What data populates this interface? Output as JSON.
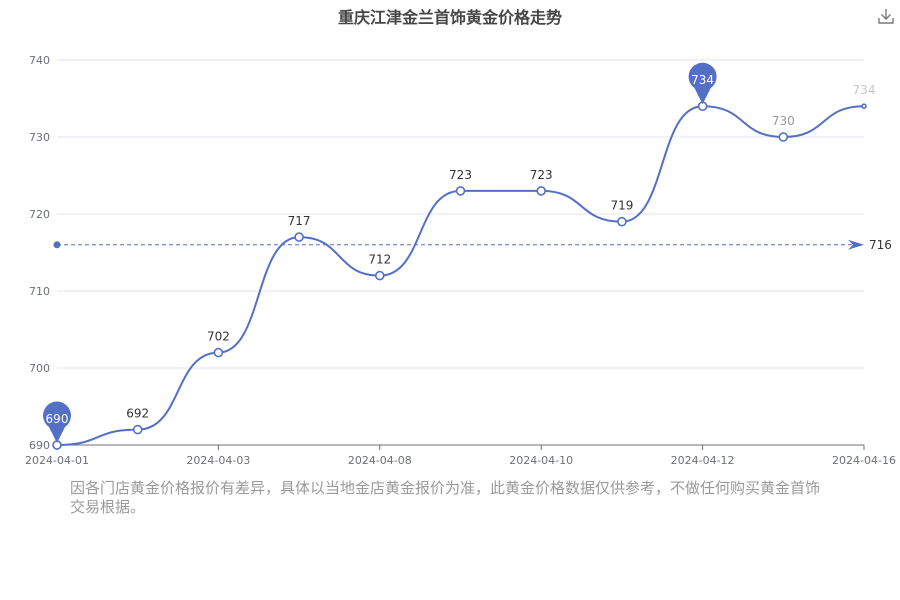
{
  "chart_data": {
    "type": "line",
    "title": "重庆江津金兰首饰黄金价格走势",
    "x": [
      "2024-04-01",
      "",
      "2024-04-03",
      "",
      "2024-04-08",
      "",
      "2024-04-10",
      "",
      "2024-04-12",
      "",
      "2024-04-16"
    ],
    "x_tick_labels": [
      "2024-04-01",
      "2024-04-03",
      "2024-04-08",
      "2024-04-10",
      "2024-04-12",
      "2024-04-16"
    ],
    "series": [
      {
        "values": [
          690,
          692,
          702,
          717,
          712,
          723,
          723,
          719,
          734,
          730,
          734
        ]
      }
    ],
    "data_labels": [
      "690",
      "692",
      "702",
      "717",
      "712",
      "723",
      "723",
      "719",
      "734",
      "730",
      "734"
    ],
    "ylim": [
      690,
      740
    ],
    "yticks": [
      "690",
      "700",
      "710",
      "720",
      "730",
      "740"
    ],
    "average_line": {
      "value": 716,
      "label": "716"
    },
    "markers": [
      {
        "type": "min",
        "label": "690",
        "index": 0
      },
      {
        "type": "max",
        "label": "734",
        "index": 8
      }
    ],
    "grid": true,
    "colors": {
      "line": "#5470c6",
      "marker": "#5470c6",
      "grid": "#e0e6f1",
      "axis": "#6e7079"
    }
  },
  "note": "因各门店黄金价格报价有差异，具体以当地金店黄金报价为准，此黄金价格数据仅供参考，不做任何购买黄金首饰交易根据。",
  "download_icon": "download-icon"
}
